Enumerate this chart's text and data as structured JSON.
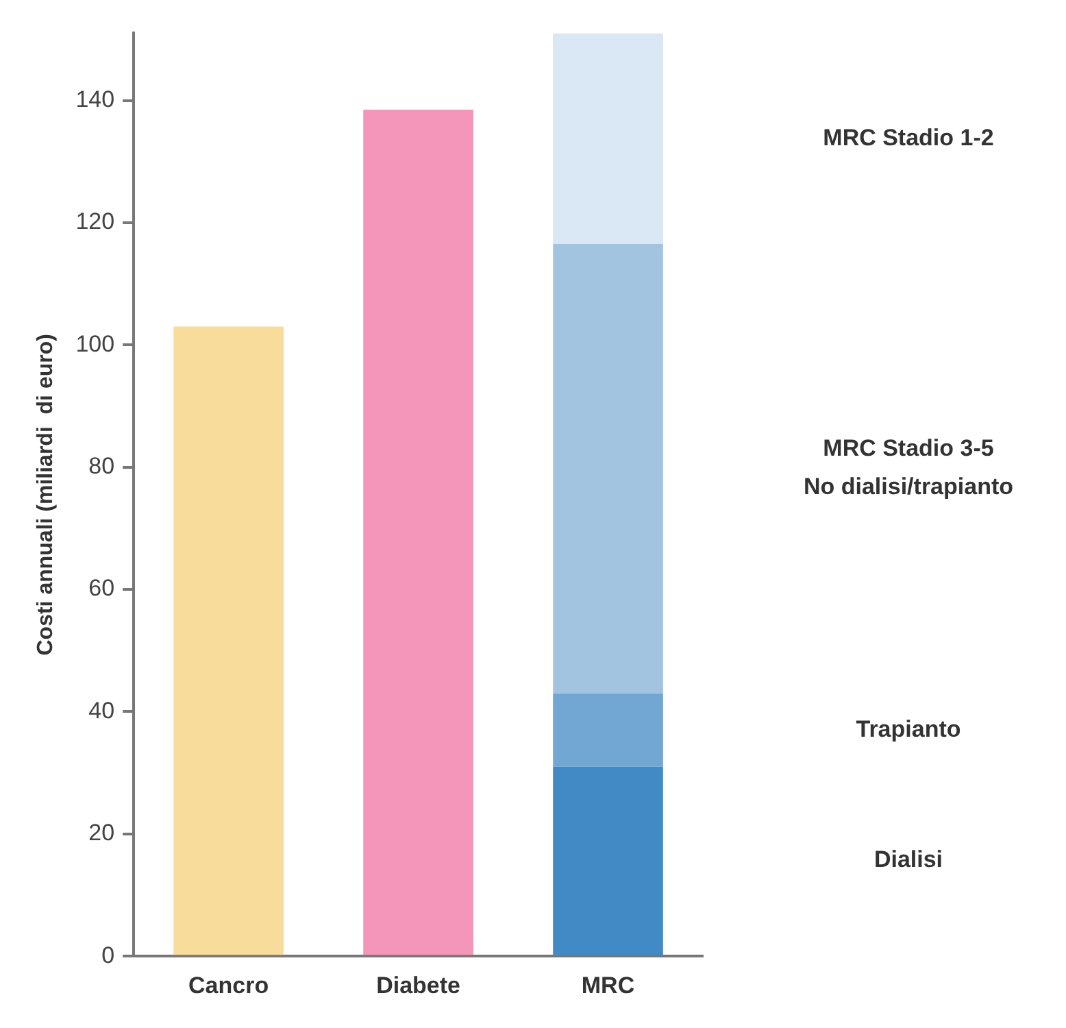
{
  "chart_data": {
    "type": "bar",
    "stacked": true,
    "ylabel": "Costi annuali (miliardi  di euro)",
    "categories": [
      "Cancro",
      "Diabete",
      "MRC"
    ],
    "series": [
      {
        "color": "#f8dc9c",
        "values": [
          103,
          null,
          null
        ]
      },
      {
        "color": "#f396b9",
        "values": [
          null,
          138.5,
          null
        ]
      },
      {
        "name": "Dialisi",
        "color": "#428ac6",
        "values": [
          null,
          null,
          31
        ]
      },
      {
        "name": "Trapianto",
        "color": "#72a7d3",
        "values": [
          null,
          null,
          12
        ]
      },
      {
        "name": "MRC Stadio 3-5\nNo dialisi/trapianto",
        "color": "#a2c4e1",
        "values": [
          null,
          null,
          73.5
        ]
      },
      {
        "name": "MRC Stadio 1-2",
        "color": "#dae7f4",
        "values": [
          null,
          null,
          34.5
        ]
      }
    ],
    "ylim": [
      0,
      151
    ],
    "yticks": [
      0,
      20,
      40,
      60,
      80,
      100,
      120,
      140
    ],
    "grid": false,
    "legend": false
  }
}
